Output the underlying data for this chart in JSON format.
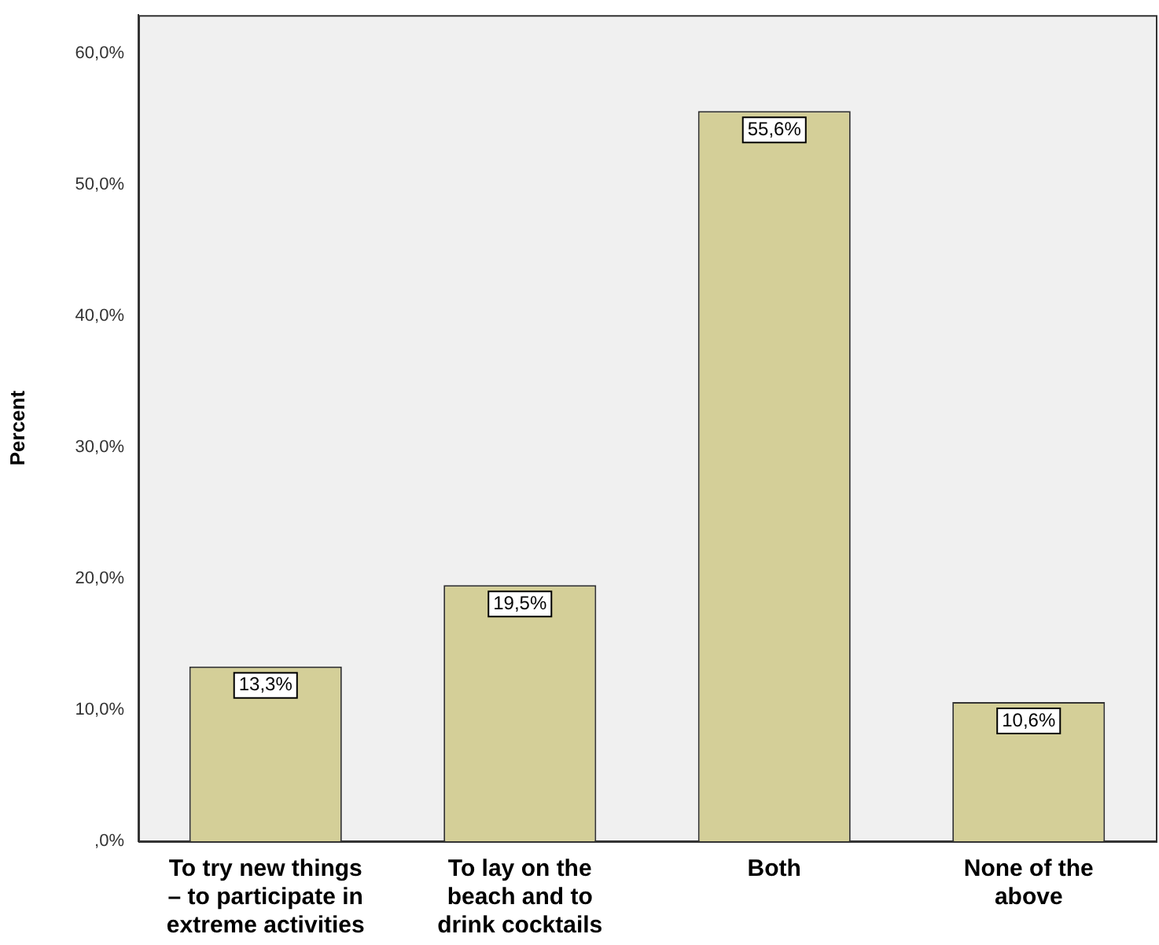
{
  "chart_data": {
    "type": "bar",
    "ylabel": "Percent",
    "categories": [
      "To try new things – to participate in extreme activities",
      "To lay on the beach and to drink cocktails",
      "Both",
      "None of the above"
    ],
    "values": [
      13.3,
      19.5,
      55.6,
      10.6
    ],
    "value_labels": [
      "13,3%",
      "19,5%",
      "55,6%",
      "10,6%"
    ],
    "color": "#d4cf98",
    "ylim": [
      0,
      62.9
    ],
    "yticks": [
      {
        "value": 0,
        "label": ",0%"
      },
      {
        "value": 10,
        "label": "10,0%"
      },
      {
        "value": 20,
        "label": "20,0%"
      },
      {
        "value": 30,
        "label": "30,0%"
      },
      {
        "value": 40,
        "label": "40,0%"
      },
      {
        "value": 50,
        "label": "50,0%"
      },
      {
        "value": 60,
        "label": "60,0%"
      }
    ],
    "grid": false,
    "legend": false
  }
}
